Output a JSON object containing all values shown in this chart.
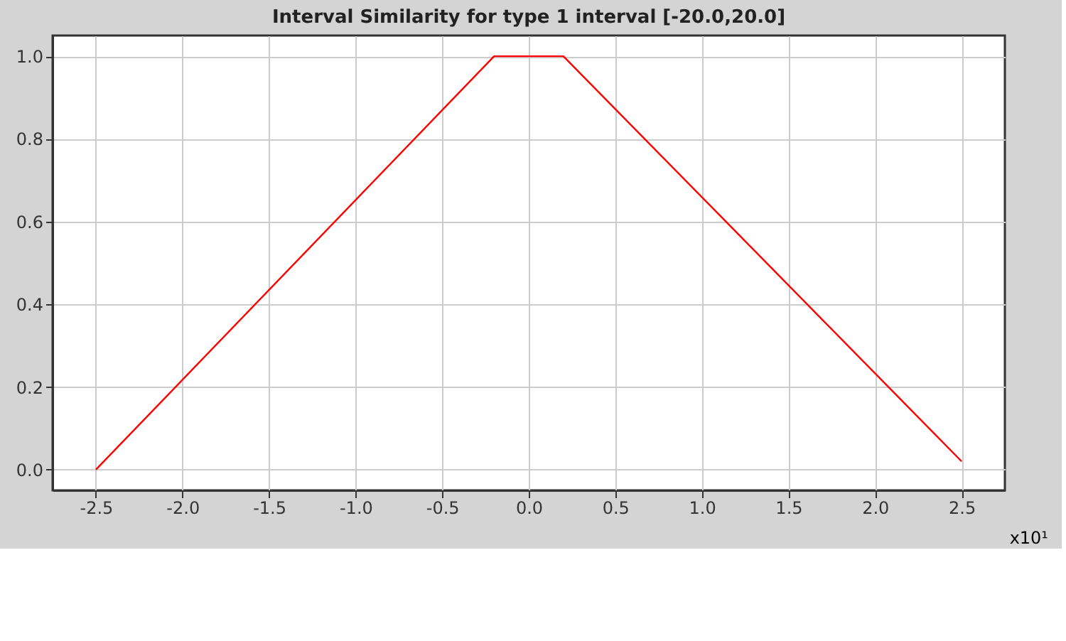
{
  "chart_data": {
    "type": "line",
    "title": "Interval Similarity for type 1 interval [-20.0,20.0]",
    "xlabel": "x10¹",
    "x": [
      -2.5,
      -0.2,
      0.2,
      2.5
    ],
    "series": [
      {
        "color": "#ff0000",
        "values": [
          0.0,
          1.0,
          1.0,
          0.02
        ]
      }
    ],
    "xlim": [
      -2.75,
      2.75
    ],
    "xticks": [
      {
        "value": -2.5,
        "label": "-2.5"
      },
      {
        "value": -2.0,
        "label": "-2.0"
      },
      {
        "value": -1.5,
        "label": "-1.5"
      },
      {
        "value": -1.0,
        "label": "-1.0"
      },
      {
        "value": -0.5,
        "label": "-0.5"
      },
      {
        "value": 0.0,
        "label": "0.0"
      },
      {
        "value": 0.5,
        "label": "0.5"
      },
      {
        "value": 1.0,
        "label": "1.0"
      },
      {
        "value": 1.5,
        "label": "1.5"
      },
      {
        "value": 2.0,
        "label": "2.0"
      },
      {
        "value": 2.5,
        "label": "2.5"
      }
    ],
    "ylim": [
      -0.05,
      1.05
    ],
    "yticks": [
      {
        "value": 0.0,
        "label": "0.0"
      },
      {
        "value": 0.2,
        "label": "0.2"
      },
      {
        "value": 0.4,
        "label": "0.4"
      },
      {
        "value": 0.6,
        "label": "0.6"
      },
      {
        "value": 0.8,
        "label": "0.8"
      },
      {
        "value": 1.0,
        "label": "1.0"
      }
    ],
    "grid": true,
    "marker": "none",
    "line_style": "solid"
  }
}
